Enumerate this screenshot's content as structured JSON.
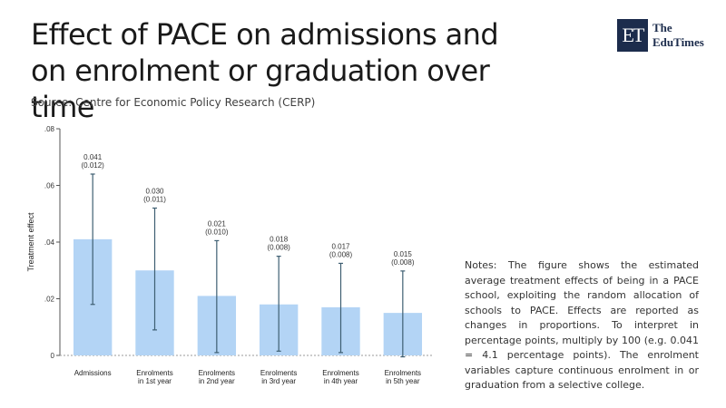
{
  "title": "Effect of PACE on admissions and on enrolment or graduation over time",
  "source": "Source: Centre for Economic Policy Research (CERP)",
  "logo": {
    "mark": "ET",
    "line1": "The",
    "line2": "EduTimes"
  },
  "notes": "Notes: The figure shows the estimated average treatment effects of being in a PACE school, exploiting the random allocation of schools to PACE. Effects are reported as changes in proportions. To interpret in percentage points, multiply by 100 (e.g. 0.041 = 4.1 percentage points). The enrolment variables capture continuous enrolment in or graduation from a selective college.",
  "colors": {
    "bar": "#b3d4f5",
    "error_bar": "#3e5f72",
    "baseline": "#9a9a9a"
  },
  "chart_data": {
    "type": "bar",
    "ylabel": "Treatment effect",
    "xlabel": "",
    "ylim": [
      0,
      0.08
    ],
    "yticks": [
      0,
      0.02,
      0.04,
      0.06,
      0.08
    ],
    "ytick_labels": [
      "0",
      ".02",
      ".04",
      ".06",
      ".08"
    ],
    "categories": [
      {
        "line1": "Admissions",
        "line2": ""
      },
      {
        "line1": "Enrolments",
        "line2": "in 1st year"
      },
      {
        "line1": "Enrolments",
        "line2": "in 2nd year"
      },
      {
        "line1": "Enrolments",
        "line2": "in 3rd year"
      },
      {
        "line1": "Enrolments",
        "line2": "in 4th year"
      },
      {
        "line1": "Enrolments",
        "line2": "in 5th year"
      }
    ],
    "values": [
      0.041,
      0.03,
      0.021,
      0.018,
      0.017,
      0.015
    ],
    "value_labels": [
      "0.041",
      "0.030",
      "0.021",
      "0.018",
      "0.017",
      "0.015"
    ],
    "se_labels": [
      "(0.012)",
      "(0.011)",
      "(0.010)",
      "(0.008)",
      "(0.008)",
      "(0.008)"
    ],
    "ci_low": [
      0.018,
      0.009,
      0.001,
      0.0015,
      0.001,
      -0.0005
    ],
    "ci_high": [
      0.064,
      0.052,
      0.0405,
      0.035,
      0.0325,
      0.0298
    ],
    "grid": false,
    "legend": "none"
  }
}
